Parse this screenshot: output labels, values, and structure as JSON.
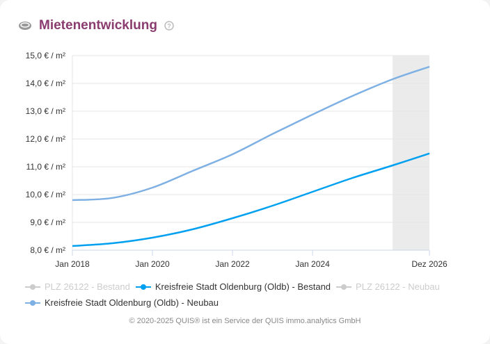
{
  "header": {
    "title": "Mietenentwicklung",
    "icon": "coins-icon",
    "help_icon": "question-circle-icon"
  },
  "chart_data": {
    "type": "line",
    "title": "Mietenentwicklung",
    "x_ticks": [
      "Jan 2018",
      "Jan 2020",
      "Jan 2022",
      "Jan 2024",
      "Dez 2026"
    ],
    "x_tick_years": [
      2018,
      2020,
      2022,
      2024,
      2026.92
    ],
    "xlim": [
      2018,
      2026.92
    ],
    "y_ticks": [
      "8,0 € / m²",
      "9,0 € / m²",
      "10,0 € / m²",
      "11,0 € / m²",
      "12,0 € / m²",
      "13,0 € / m²",
      "14,0 € / m²",
      "15,0 € / m²"
    ],
    "ylim": [
      8,
      15
    ],
    "grid": true,
    "forecast_band": [
      2026,
      2026.92
    ],
    "legend_placement": "bottom",
    "series": [
      {
        "name": "PLZ 26122 - Bestand",
        "color": "#cccccc",
        "hidden": true,
        "x": [],
        "y": []
      },
      {
        "name": "Kreisfreie Stadt Oldenburg (Oldb) - Bestand",
        "color": "#00a0f0",
        "hidden": false,
        "x": [
          2018,
          2019,
          2020,
          2021,
          2022,
          2023,
          2024,
          2025,
          2026,
          2026.92
        ],
        "y": [
          8.15,
          8.25,
          8.45,
          8.75,
          9.15,
          9.6,
          10.1,
          10.6,
          11.05,
          11.48
        ]
      },
      {
        "name": "PLZ 26122 - Neubau",
        "color": "#cccccc",
        "hidden": true,
        "x": [],
        "y": []
      },
      {
        "name": "Kreisfreie Stadt Oldenburg (Oldb) - Neubau",
        "color": "#7eb0e4",
        "hidden": false,
        "x": [
          2018,
          2019,
          2020,
          2021,
          2022,
          2023,
          2024,
          2025,
          2026,
          2026.92
        ],
        "y": [
          9.8,
          9.88,
          10.25,
          10.85,
          11.45,
          12.18,
          12.88,
          13.55,
          14.15,
          14.6
        ]
      }
    ]
  },
  "footer": "© 2020-2025 QUIS® ist ein Service der QUIS immo.analytics GmbH"
}
